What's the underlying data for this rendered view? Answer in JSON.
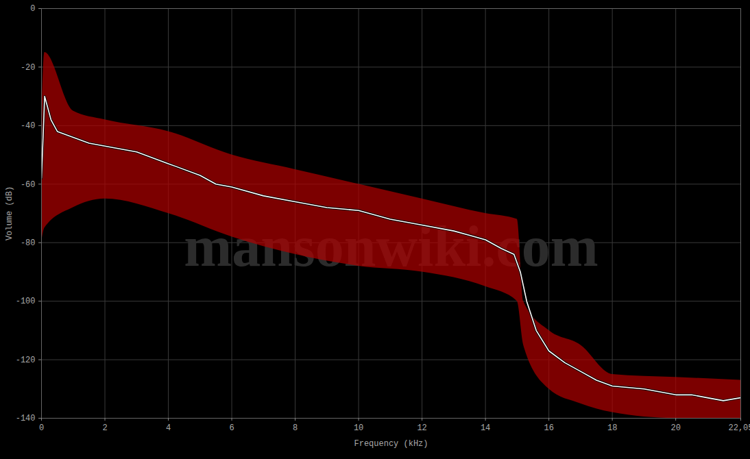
{
  "chart_data": {
    "type": "line",
    "xlabel": "Frequency (kHz)",
    "ylabel": "Volume (dB)",
    "annotations": [
      "mansonwiki.com"
    ],
    "color": "#ffffff",
    "grid": true,
    "xlim": [
      0,
      22.05
    ],
    "ylim": [
      -140,
      0
    ],
    "xticks": [
      0,
      2,
      4,
      6,
      8,
      10,
      12,
      14,
      16,
      18,
      20,
      {
        "value": 22.05,
        "label": "22,05"
      }
    ],
    "yticks": [
      0,
      -20,
      -40,
      -60,
      -80,
      -100,
      -120,
      -140
    ],
    "x": [
      0,
      0.1,
      0.3,
      0.5,
      1,
      1.5,
      2,
      3,
      4,
      5,
      5.5,
      6,
      7,
      8,
      9,
      10,
      11,
      12,
      13,
      13.5,
      14,
      14.5,
      14.9,
      15.1,
      15.3,
      15.6,
      16,
      16.5,
      17,
      17.5,
      18,
      19,
      20,
      20.5,
      21,
      21.5,
      22.05
    ],
    "values": [
      -58,
      -30,
      -38,
      -42,
      -44,
      -46,
      -47,
      -49,
      -53,
      -57,
      -60,
      -61,
      -64,
      -66,
      -68,
      -69,
      -72,
      -74,
      -76,
      -77.5,
      -79,
      -82,
      -84,
      -90,
      -100,
      -110,
      -117,
      -121,
      -124,
      -127,
      -129,
      -130,
      -132,
      -132,
      -133,
      -134,
      -133
    ],
    "band": {
      "x": [
        0,
        0.1,
        1,
        2,
        4,
        6,
        8,
        10,
        12,
        14,
        15,
        15.2,
        16,
        17,
        18,
        20,
        22.05
      ],
      "upper": [
        -40,
        -15,
        -35,
        -38,
        -42,
        -50,
        -55,
        -60,
        -65,
        -70,
        -72,
        -100,
        -110,
        -115,
        -125,
        -126,
        -127
      ],
      "lower": [
        -80,
        -75,
        -68,
        -65,
        -70,
        -78,
        -84,
        -88,
        -90,
        -95,
        -100,
        -115,
        -130,
        -135,
        -138,
        -140,
        -140
      ]
    }
  }
}
